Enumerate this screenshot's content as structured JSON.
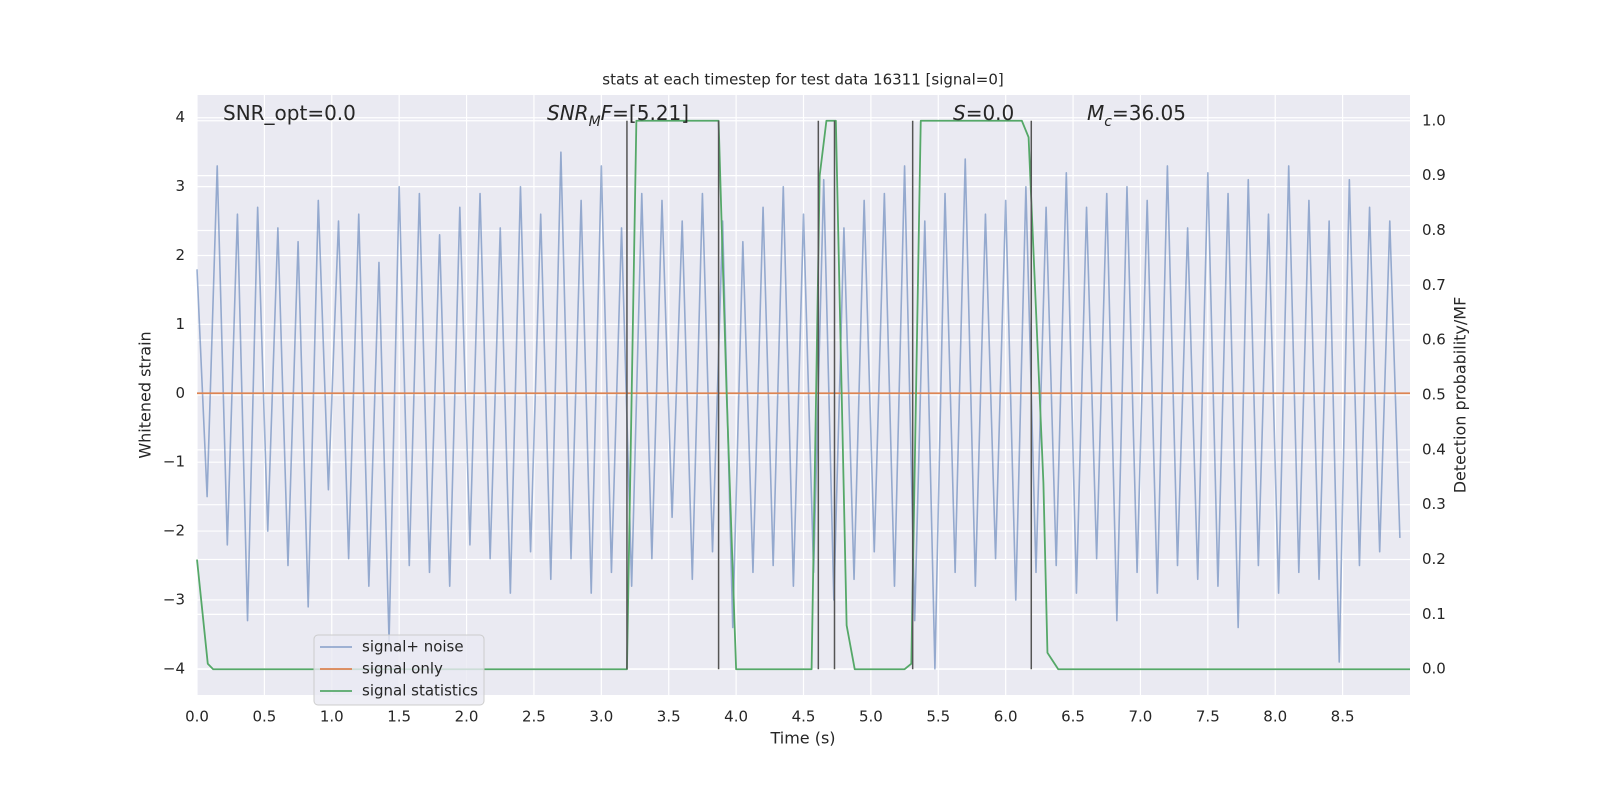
{
  "chart_data": {
    "type": "line",
    "title": "stats at each timestep for test data 16311 [signal=0]",
    "xlabel": "Time (s)",
    "ylabel": "Whitened strain",
    "y2label": "Detection probability/MF",
    "xlim": [
      0,
      9.0
    ],
    "ylim": [
      -4.38,
      4.33
    ],
    "y2lim": [
      -0.047,
      1.047
    ],
    "xticks": [
      {
        "value": 0,
        "label": "0.0"
      },
      0.5,
      {
        "value": 1,
        "label": "1.0"
      },
      1.5,
      {
        "value": 2,
        "label": "2.0"
      },
      2.5,
      {
        "value": 3,
        "label": "3.0"
      },
      3.5,
      {
        "value": 4,
        "label": "4.0"
      },
      4.5,
      {
        "value": 5,
        "label": "5.0"
      },
      5.5,
      {
        "value": 6,
        "label": "6.0"
      },
      6.5,
      {
        "value": 7,
        "label": "7.0"
      },
      7.5,
      {
        "value": 8,
        "label": "8.0"
      },
      8.5
    ],
    "yticks": [
      {
        "value": -4,
        "label": "−4"
      },
      {
        "value": -3,
        "label": "−3"
      },
      {
        "value": -2,
        "label": "−2"
      },
      {
        "value": -1,
        "label": "−1"
      },
      0,
      1,
      2,
      3,
      4
    ],
    "y2ticks": [
      {
        "value": 0,
        "label": "0.0"
      },
      0.1,
      0.2,
      0.3,
      0.4,
      0.5,
      0.6,
      0.7,
      0.8,
      0.9,
      {
        "value": 1,
        "label": "1.0"
      }
    ],
    "grid": true,
    "legend": "lower left",
    "series": [
      {
        "name": "signal+ noise",
        "color": "#4c72b0",
        "opacity": 0.55,
        "x": [
          0,
          0.075,
          0.15,
          0.225,
          0.3,
          0.375,
          0.45,
          0.525,
          0.6,
          0.675,
          0.75,
          0.825,
          0.9,
          0.975,
          1.05,
          1.125,
          1.2,
          1.275,
          1.35,
          1.425,
          1.5,
          1.575,
          1.65,
          1.725,
          1.8,
          1.875,
          1.95,
          2.025,
          2.1,
          2.175,
          2.25,
          2.325,
          2.4,
          2.475,
          2.55,
          2.625,
          2.7,
          2.775,
          2.85,
          2.925,
          3.0,
          3.075,
          3.15,
          3.225,
          3.3,
          3.375,
          3.45,
          3.525,
          3.6,
          3.675,
          3.75,
          3.825,
          3.9,
          3.975,
          4.05,
          4.125,
          4.2,
          4.275,
          4.35,
          4.425,
          4.5,
          4.575,
          4.65,
          4.725,
          4.8,
          4.875,
          4.95,
          5.025,
          5.1,
          5.175,
          5.25,
          5.325,
          5.4,
          5.475,
          5.55,
          5.625,
          5.7,
          5.775,
          5.85,
          5.925,
          6.0,
          6.075,
          6.15,
          6.225,
          6.3,
          6.375,
          6.45,
          6.525,
          6.6,
          6.675,
          6.75,
          6.825,
          6.9,
          6.975,
          7.05,
          7.125,
          7.2,
          7.275,
          7.35,
          7.425,
          7.5,
          7.575,
          7.65,
          7.725,
          7.8,
          7.875,
          7.95,
          8.025,
          8.1,
          8.175,
          8.25,
          8.325,
          8.4,
          8.475,
          8.55,
          8.625,
          8.7,
          8.775,
          8.85,
          8.925
        ],
        "values": [
          1.8,
          -1.5,
          3.3,
          -2.2,
          2.6,
          -3.3,
          2.7,
          -2.0,
          2.4,
          -2.5,
          2.2,
          -3.1,
          2.8,
          -1.4,
          2.5,
          -2.4,
          2.6,
          -2.8,
          1.9,
          -3.6,
          3.0,
          -2.5,
          2.9,
          -2.6,
          2.3,
          -2.8,
          2.7,
          -2.2,
          2.9,
          -2.4,
          2.4,
          -2.9,
          3.0,
          -2.3,
          2.6,
          -2.7,
          3.5,
          -2.4,
          2.8,
          -2.9,
          3.3,
          -2.6,
          2.4,
          -2.8,
          2.9,
          -2.4,
          2.8,
          -1.8,
          2.5,
          -2.7,
          2.9,
          -2.3,
          2.5,
          -3.4,
          2.2,
          -2.6,
          2.7,
          -2.5,
          3.0,
          -2.8,
          2.6,
          -2.6,
          3.1,
          -3.0,
          2.4,
          -2.7,
          2.8,
          -2.3,
          2.9,
          -2.8,
          3.3,
          -3.3,
          2.5,
          -4.0,
          2.9,
          -2.6,
          3.4,
          -2.8,
          2.6,
          -2.4,
          2.8,
          -3.0,
          3.0,
          -2.6,
          2.7,
          -2.5,
          3.2,
          -2.9,
          2.7,
          -2.4,
          2.9,
          -3.3,
          3.0,
          -2.6,
          2.8,
          -2.9,
          3.3,
          -2.5,
          2.4,
          -2.7,
          3.2,
          -2.8,
          2.9,
          -3.4,
          3.1,
          -2.5,
          2.6,
          -2.9,
          3.3,
          -2.6,
          2.8,
          -2.7,
          2.5,
          -3.9,
          3.1,
          -2.5,
          2.7,
          -2.3,
          2.5,
          -2.1
        ]
      },
      {
        "name": "signal only",
        "color": "#dd8452",
        "x": [
          0,
          9.0
        ],
        "values": [
          0,
          0
        ]
      },
      {
        "name": "signal statistics",
        "color": "#55a868",
        "axis": "y2",
        "x": [
          0,
          0.08,
          0.12,
          3.19,
          3.26,
          3.87,
          3.93,
          4.0,
          4.56,
          4.62,
          4.67,
          4.74,
          4.82,
          4.88,
          5.25,
          5.3,
          5.37,
          6.12,
          6.17,
          6.28,
          6.31,
          6.39,
          9.0
        ],
        "values": [
          0.2,
          0.01,
          0,
          0,
          1.0,
          1.0,
          0.5,
          0,
          0,
          0.9,
          1.0,
          1.0,
          0.08,
          0,
          0,
          0.01,
          1.0,
          1.0,
          0.97,
          0.34,
          0.03,
          0,
          0
        ]
      }
    ],
    "vlines": {
      "color": "#555555",
      "axis": "y2",
      "ymin": 0,
      "ymax": 1,
      "x": [
        3.19,
        3.87,
        4.61,
        4.73,
        5.31,
        6.19
      ]
    },
    "annotations": [
      {
        "parts": [
          {
            "text": "SNR_opt=0.0"
          }
        ]
      },
      {
        "parts": [
          {
            "text": "SNR",
            "style": "italic"
          },
          {
            "text": "M",
            "style": "italic-sub"
          },
          {
            "text": "F",
            "style": "italic"
          },
          {
            "text": "=[5.21]"
          }
        ]
      },
      {
        "parts": [
          {
            "text": "S",
            "style": "italic"
          },
          {
            "text": "=0.0"
          }
        ]
      },
      {
        "parts": [
          {
            "text": "M",
            "style": "italic"
          },
          {
            "text": "c",
            "style": "italic-sub"
          },
          {
            "text": "=36.05"
          }
        ]
      }
    ]
  }
}
